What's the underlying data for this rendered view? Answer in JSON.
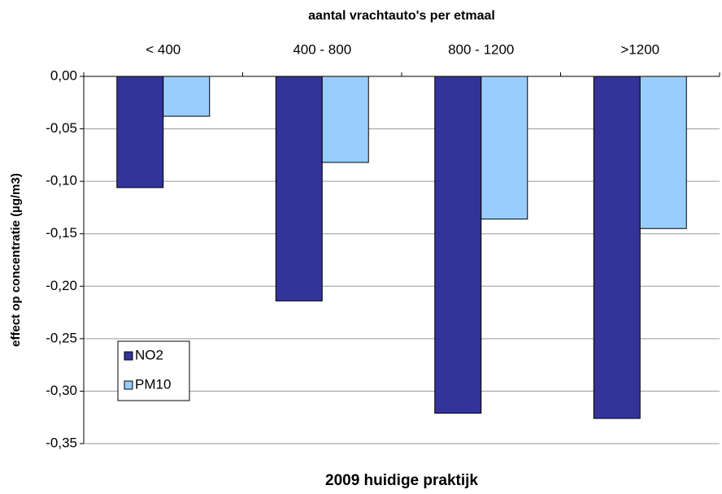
{
  "chart_data": {
    "type": "bar",
    "title": "aantal vrachtauto's per etmaal",
    "x_label": "2009 huidige praktijk",
    "y_label": "effect op concentratie (µg/m3)",
    "categories": [
      "< 400",
      "400 - 800",
      "800 - 1200",
      ">1200"
    ],
    "series": [
      {
        "name": "NO2",
        "color": "#333399",
        "values": [
          -0.106,
          -0.214,
          -0.321,
          -0.326
        ]
      },
      {
        "name": "PM10",
        "color": "#99ccff",
        "values": [
          -0.038,
          -0.082,
          -0.136,
          -0.145
        ]
      }
    ],
    "ylim": [
      -0.35,
      0
    ],
    "yticks": [
      {
        "value": 0,
        "label": "0,00"
      },
      {
        "value": -0.05,
        "label": "-0,05"
      },
      {
        "value": -0.1,
        "label": "-0,10"
      },
      {
        "value": -0.15,
        "label": "-0,15"
      },
      {
        "value": -0.2,
        "label": "-0,20"
      },
      {
        "value": -0.25,
        "label": "-0,25"
      },
      {
        "value": -0.3,
        "label": "-0,30"
      },
      {
        "value": -0.35,
        "label": "-0,35"
      }
    ],
    "grid": true,
    "legend": "lower left"
  }
}
